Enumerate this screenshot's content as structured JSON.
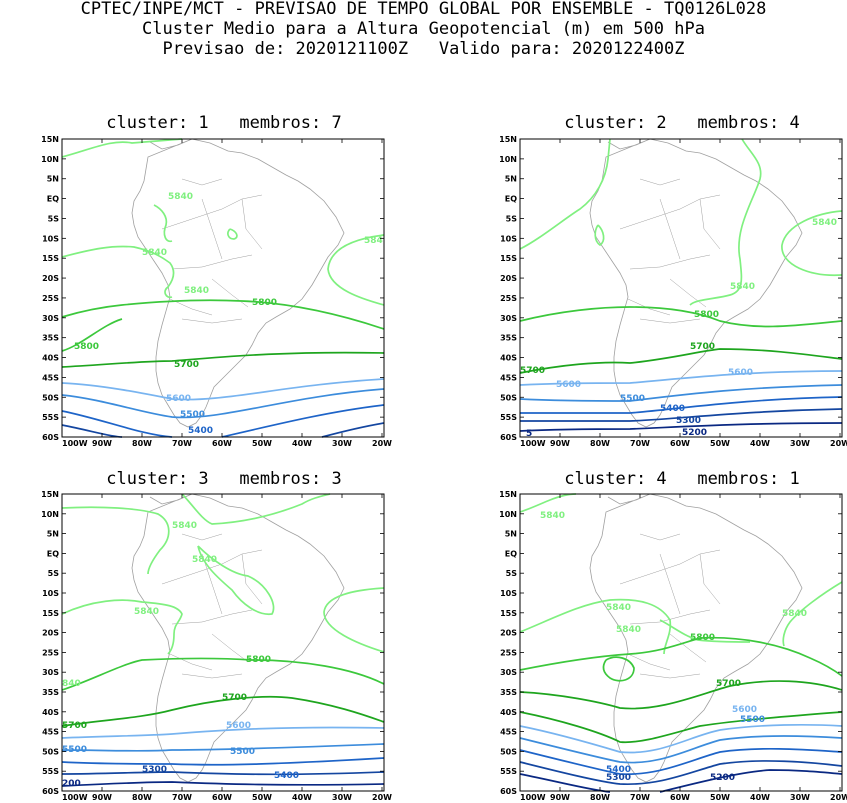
{
  "header": {
    "line1": "CPTEC/INPE/MCT - PREVISAO DE TEMPO GLOBAL POR ENSEMBLE - TQ0126L028",
    "line2": "Cluster Medio para a Altura Geopotencial (m) em 500 hPa",
    "line3": "Previsao de: 2020121100Z   Valido para: 2020122400Z"
  },
  "lat_labels": [
    "15N",
    "10N",
    "5N",
    "EQ",
    "5S",
    "10S",
    "15S",
    "20S",
    "25S",
    "30S",
    "35S",
    "40S",
    "45S",
    "50S",
    "55S",
    "60S"
  ],
  "lon_labels": [
    "100W",
    "90W",
    "80W",
    "70W",
    "60W",
    "50W",
    "40W",
    "30W",
    "20W"
  ],
  "colors": {
    "5840": "#80f080",
    "5800": "#3cc83c",
    "5700": "#1ea51e",
    "5600": "#78b4f0",
    "5500": "#3c8cdc",
    "5400": "#1e64c8",
    "5300": "#1446a0",
    "5200": "#0a2882",
    "land": "#a0a0a0"
  },
  "panels": [
    {
      "title": "cluster: 1   membros: 7",
      "labels": [
        {
          "text": "5840",
          "level": "5840"
        },
        {
          "text": "5840",
          "level": "5840"
        },
        {
          "text": "584",
          "level": "5840"
        },
        {
          "text": "5840",
          "level": "5840"
        },
        {
          "text": "5800",
          "level": "5800"
        },
        {
          "text": "5800",
          "level": "5800"
        },
        {
          "text": "5700",
          "level": "5700"
        },
        {
          "text": "5600",
          "level": "5600"
        },
        {
          "text": "5500",
          "level": "5500"
        },
        {
          "text": "5400",
          "level": "5400"
        }
      ]
    },
    {
      "title": "cluster: 2   membros: 4",
      "labels": [
        {
          "text": "5840",
          "level": "5840"
        },
        {
          "text": "5840",
          "level": "5840"
        },
        {
          "text": "5800",
          "level": "5800"
        },
        {
          "text": "5700",
          "level": "5700"
        },
        {
          "text": "5700",
          "level": "5700"
        },
        {
          "text": "5600",
          "level": "5600"
        },
        {
          "text": "5600",
          "level": "5600"
        },
        {
          "text": "5500",
          "level": "5500"
        },
        {
          "text": "5400",
          "level": "5400"
        },
        {
          "text": "5300",
          "level": "5300"
        },
        {
          "text": "5200",
          "level": "5200"
        },
        {
          "text": "5",
          "level": "5200"
        }
      ]
    },
    {
      "title": "cluster: 3   membros: 3",
      "labels": [
        {
          "text": "5840",
          "level": "5840"
        },
        {
          "text": "5840",
          "level": "5840"
        },
        {
          "text": "5840",
          "level": "5840"
        },
        {
          "text": "840",
          "level": "5840"
        },
        {
          "text": "5800",
          "level": "5800"
        },
        {
          "text": "5700",
          "level": "5700"
        },
        {
          "text": "5700",
          "level": "5700"
        },
        {
          "text": "5600",
          "level": "5600"
        },
        {
          "text": "5500",
          "level": "5500"
        },
        {
          "text": "5500",
          "level": "5500"
        },
        {
          "text": "5400",
          "level": "5400"
        },
        {
          "text": "5300",
          "level": "5300"
        },
        {
          "text": "200",
          "level": "5200"
        }
      ]
    },
    {
      "title": "cluster: 4   membros: 1",
      "labels": [
        {
          "text": "5840",
          "level": "5840"
        },
        {
          "text": "5840",
          "level": "5840"
        },
        {
          "text": "5840",
          "level": "5840"
        },
        {
          "text": "5840",
          "level": "5840"
        },
        {
          "text": "5800",
          "level": "5800"
        },
        {
          "text": "5700",
          "level": "5700"
        },
        {
          "text": "5600",
          "level": "5600"
        },
        {
          "text": "5500",
          "level": "5500"
        },
        {
          "text": "5400",
          "level": "5400"
        },
        {
          "text": "5300",
          "level": "5300"
        },
        {
          "text": "5200",
          "level": "5200"
        }
      ]
    }
  ]
}
